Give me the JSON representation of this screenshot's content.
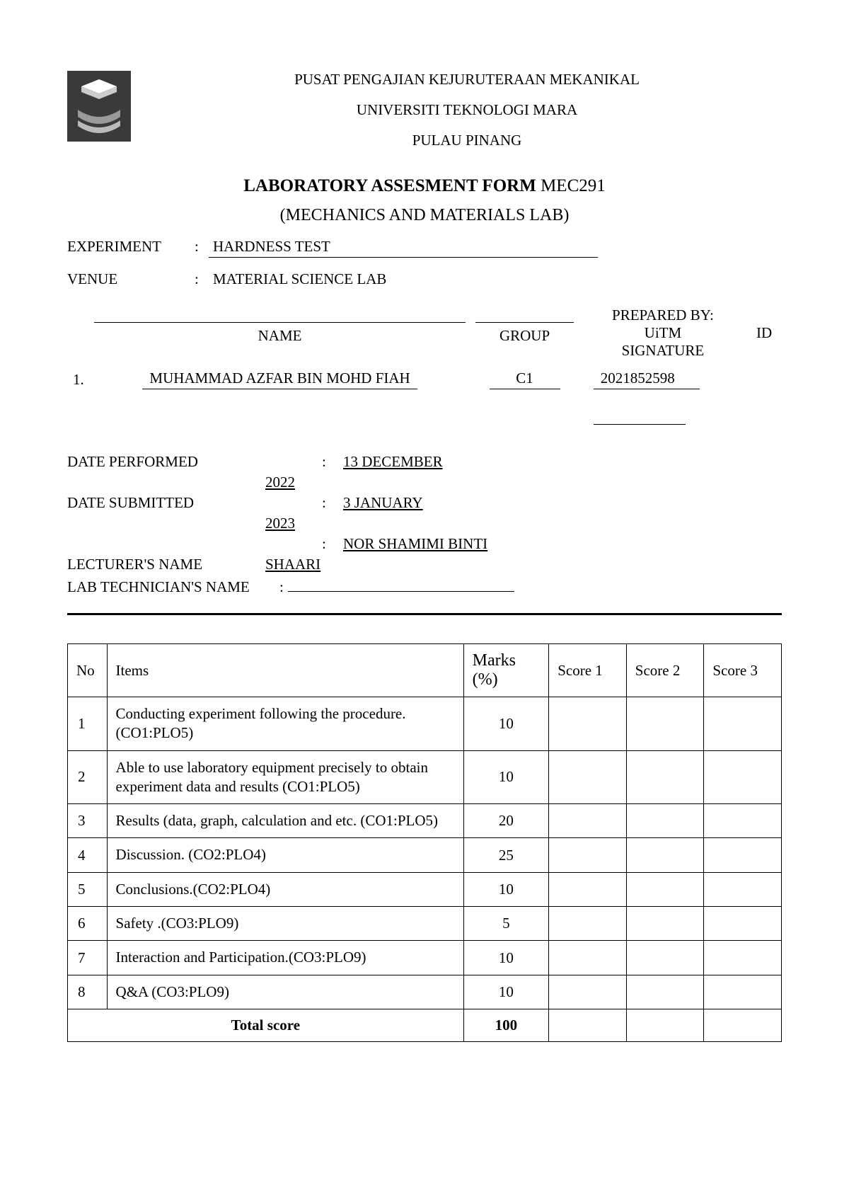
{
  "header": {
    "school": "PUSAT PENGAJIAN KEJURUTERAAN MEKANIKAL",
    "university": "UNIVERSITI TEKNOLOGI MARA",
    "campus": "PULAU PINANG"
  },
  "title": {
    "bold": "LABORATORY ASSESMENT FORM",
    "code": " MEC291",
    "subtitle": "(MECHANICS AND MATERIALS LAB)"
  },
  "fields": {
    "experiment_label": "EXPERIMENT",
    "experiment_value": "HARDNESS TEST",
    "venue_label": "VENUE",
    "venue_value": "MATERIAL SCIENCE LAB",
    "prepared_by": "PREPARED BY:"
  },
  "student_table": {
    "headers": {
      "name": "NAME",
      "group": "GROUP",
      "uitm_id": "UiTM",
      "signature": "SIGNATURE",
      "id_col": "ID"
    },
    "row_num": "1.",
    "student_name": "MUHAMMAD AZFAR BIN MOHD FIAH",
    "group": "C1",
    "uitm_id": "2021852598"
  },
  "dates": {
    "performed_label": "DATE PERFORMED",
    "performed_value": "13       DECEMBER",
    "performed_year": "2022",
    "submitted_label": "DATE SUBMITTED",
    "submitted_value": "3       JANUARY",
    "submitted_year": "2023",
    "lecturer_label": "LECTURER'S NAME",
    "lecturer_value": "NOR    SHAMIMI    BINTI",
    "lecturer_surname": "SHAARI",
    "technician_label": "LAB TECHNICIAN'S NAME"
  },
  "assessment": {
    "headers": {
      "no": "No",
      "items": "Items",
      "marks": "Marks (%)",
      "score1": "Score 1",
      "score2": "Score 2",
      "score3": "Score 3"
    },
    "rows": [
      {
        "no": "1",
        "item": "Conducting experiment following the procedure. (CO1:PLO5)",
        "marks": "10"
      },
      {
        "no": "2",
        "item": "Able to use laboratory equipment precisely to obtain experiment data and results (CO1:PLO5)",
        "marks": "10"
      },
      {
        "no": "3",
        "item": "Results (data, graph, calculation and etc. (CO1:PLO5)",
        "marks": "20"
      },
      {
        "no": "4",
        "item": "Discussion. (CO2:PLO4)",
        "marks": "25"
      },
      {
        "no": "5",
        "item": "Conclusions.(CO2:PLO4)",
        "marks": "10"
      },
      {
        "no": "6",
        "item": "Safety .(CO3:PLO9)",
        "marks": "5"
      },
      {
        "no": "7",
        "item": "Interaction and Participation.(CO3:PLO9)",
        "marks": "10"
      },
      {
        "no": "8",
        "item": "Q&A (CO3:PLO9)",
        "marks": "10"
      }
    ],
    "total_label": "Total score",
    "total_marks": "100"
  },
  "colors": {
    "text": "#000000",
    "background": "#ffffff",
    "border": "#000000",
    "logo_gray": "#7a7a7a"
  }
}
